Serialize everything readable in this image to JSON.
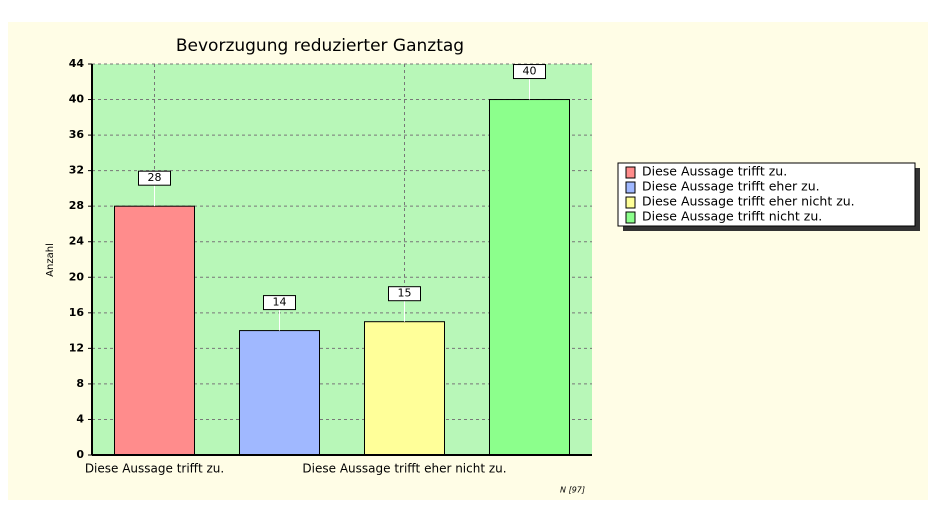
{
  "chart_data": {
    "type": "bar",
    "title": "Bevorzugung reduzierter Ganztag",
    "y_label": "Anzahl",
    "categories": [
      "Diese Aussage trifft zu.",
      null,
      "Diese Aussage trifft eher nicht zu.",
      null
    ],
    "legend": [
      "Diese Aussage trifft zu.",
      "Diese Aussage trifft eher zu.",
      "Diese Aussage trifft eher nicht zu.",
      "Diese Aussage trifft nicht zu."
    ],
    "values": [
      28,
      14,
      15,
      40
    ],
    "colors": [
      "#ff8c8c",
      "#a0b8ff",
      "#ffff99",
      "#8cff8c"
    ],
    "ylim": [
      0,
      44
    ],
    "yticks": [
      0,
      4,
      8,
      12,
      16,
      20,
      24,
      28,
      32,
      36,
      40,
      44
    ],
    "grid": true,
    "note": "N [97]"
  }
}
